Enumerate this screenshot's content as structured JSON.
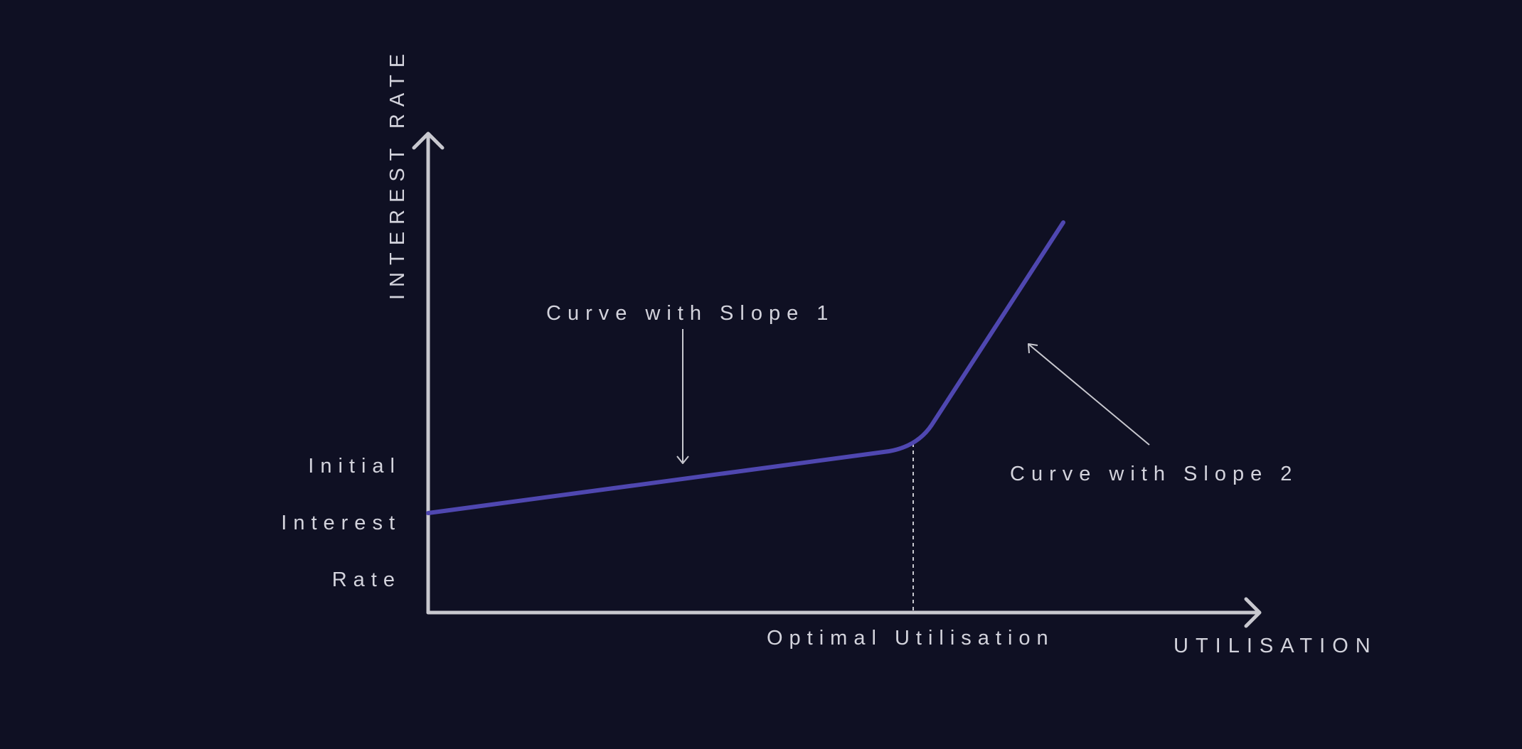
{
  "diagram": {
    "y_axis_label": "INTEREST RATE",
    "x_axis_label": "UTILISATION",
    "initial_rate_label": [
      "Initial",
      "Interest",
      "Rate"
    ],
    "slope1_label": "Curve with Slope 1",
    "slope2_label": "Curve with Slope 2",
    "optimal_label": "Optimal Utilisation"
  },
  "colors": {
    "background": "#0f1023",
    "axis": "#c8c8cf",
    "curve": "#4f47b0",
    "text": "#d3d3dc"
  }
}
